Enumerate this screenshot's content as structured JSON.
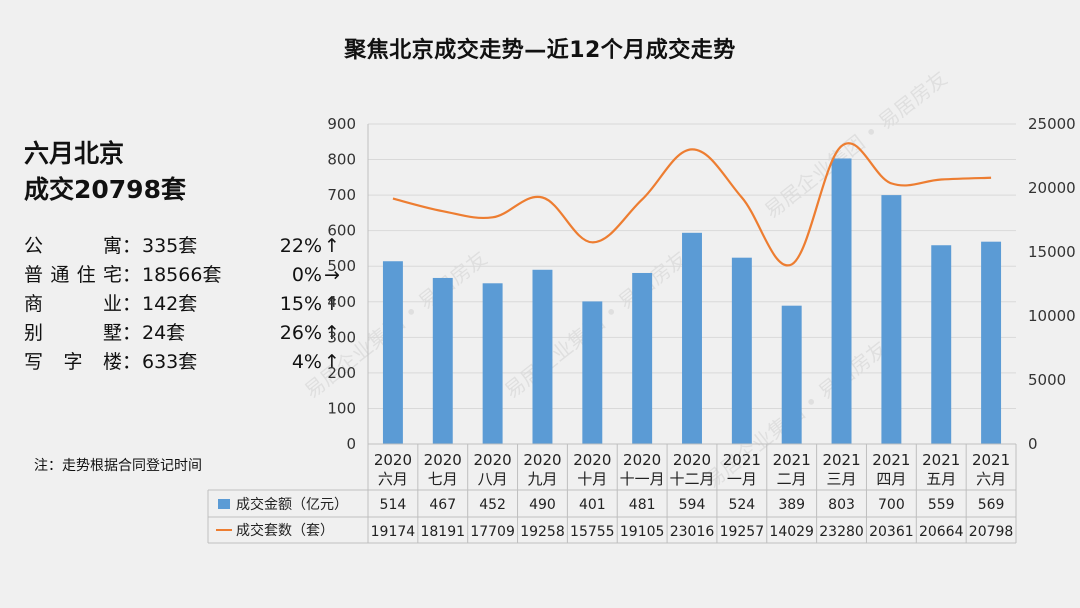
{
  "title": "聚焦北京成交走势—近12个月成交走势",
  "headline": {
    "line1": "六月北京",
    "line2": "成交20798套"
  },
  "stats": [
    {
      "label": "公寓",
      "count": "335套",
      "pct": "22%",
      "arrow": "↑"
    },
    {
      "label": "普通住宅",
      "count": "18566套",
      "pct": "0%",
      "arrow": "→"
    },
    {
      "label": "商业",
      "count": "142套",
      "pct": "15%",
      "arrow": "↑"
    },
    {
      "label": "别墅",
      "count": "24套",
      "pct": "26%",
      "arrow": "↑"
    },
    {
      "label": "写字楼",
      "count": "633套",
      "pct": "4%",
      "arrow": "↑"
    }
  ],
  "note": "注：走势根据合同登记时间",
  "watermark": "易居企业集团 • 易居房友",
  "colors": {
    "bar": "#5b9bd5",
    "line": "#ed7d31",
    "grid": "#d9d9d9",
    "axis": "#bfbfbf"
  },
  "chart_data": {
    "type": "bar",
    "categories": [
      [
        "2020",
        "六月"
      ],
      [
        "2020",
        "七月"
      ],
      [
        "2020",
        "八月"
      ],
      [
        "2020",
        "九月"
      ],
      [
        "2020",
        "十月"
      ],
      [
        "2020",
        "十一月"
      ],
      [
        "2020",
        "十二月"
      ],
      [
        "2021",
        "一月"
      ],
      [
        "2021",
        "二月"
      ],
      [
        "2021",
        "三月"
      ],
      [
        "2021",
        "四月"
      ],
      [
        "2021",
        "五月"
      ],
      [
        "2021",
        "六月"
      ]
    ],
    "series": [
      {
        "name": "成交金额（亿元）",
        "type": "bar",
        "axis": "left",
        "values": [
          514,
          467,
          452,
          490,
          401,
          481,
          594,
          524,
          389,
          803,
          700,
          559,
          569
        ]
      },
      {
        "name": "成交套数（套）",
        "type": "line",
        "axis": "right",
        "values": [
          19174,
          18191,
          17709,
          19258,
          15755,
          19105,
          23016,
          19257,
          14029,
          23280,
          20361,
          20664,
          20798
        ]
      }
    ],
    "y_left": {
      "min": 0,
      "max": 900,
      "ticks": [
        0,
        100,
        200,
        300,
        400,
        500,
        600,
        700,
        800,
        900
      ]
    },
    "y_right": {
      "min": 0,
      "max": 25000,
      "ticks": [
        0,
        5000,
        10000,
        15000,
        20000,
        25000
      ]
    },
    "grid": true,
    "legend": "data-table"
  }
}
